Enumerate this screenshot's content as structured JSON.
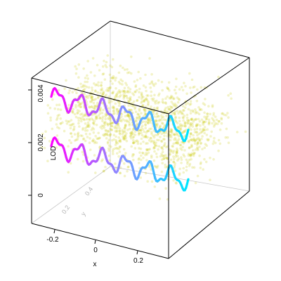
{
  "chart_data": {
    "type": "scatter",
    "subtype": "3d-scatter-with-curves",
    "title": "",
    "xlabel": "x",
    "ylabel": "y",
    "zlabel": "LOD",
    "x_ticks": [
      "-0.2",
      "0",
      "0.2"
    ],
    "y_ticks": [
      "0.2",
      "0.4"
    ],
    "z_ticks": [
      "0",
      "0.002",
      "0.004"
    ],
    "xlim": [
      -0.33,
      0.33
    ],
    "ylim": [
      0.0,
      0.6
    ],
    "zlim": [
      -0.0008,
      0.0045
    ],
    "grid": false,
    "legend": "none",
    "colors": {
      "points": "#c8c800",
      "curve_gradient": [
        "#ff00ff",
        "#8c8cff",
        "#00e5ff"
      ],
      "box": "#000000",
      "depth_labels": "#b4b4b4"
    },
    "series": [
      {
        "kind": "cloud",
        "x_range": [
          -0.33,
          0.33
        ],
        "y_range": [
          0.0,
          0.6
        ],
        "z_range": [
          0.0005,
          0.0045
        ]
      },
      {
        "kind": "curve",
        "y": 0.15,
        "z_center": 0.0033,
        "amplitude": 0.0003,
        "waves": 6,
        "x": [
          -0.33,
          0.33
        ]
      },
      {
        "kind": "curve",
        "y": 0.15,
        "z_center": 0.0015,
        "amplitude": 0.0003,
        "waves": 6,
        "x": [
          -0.33,
          0.33
        ]
      }
    ]
  }
}
